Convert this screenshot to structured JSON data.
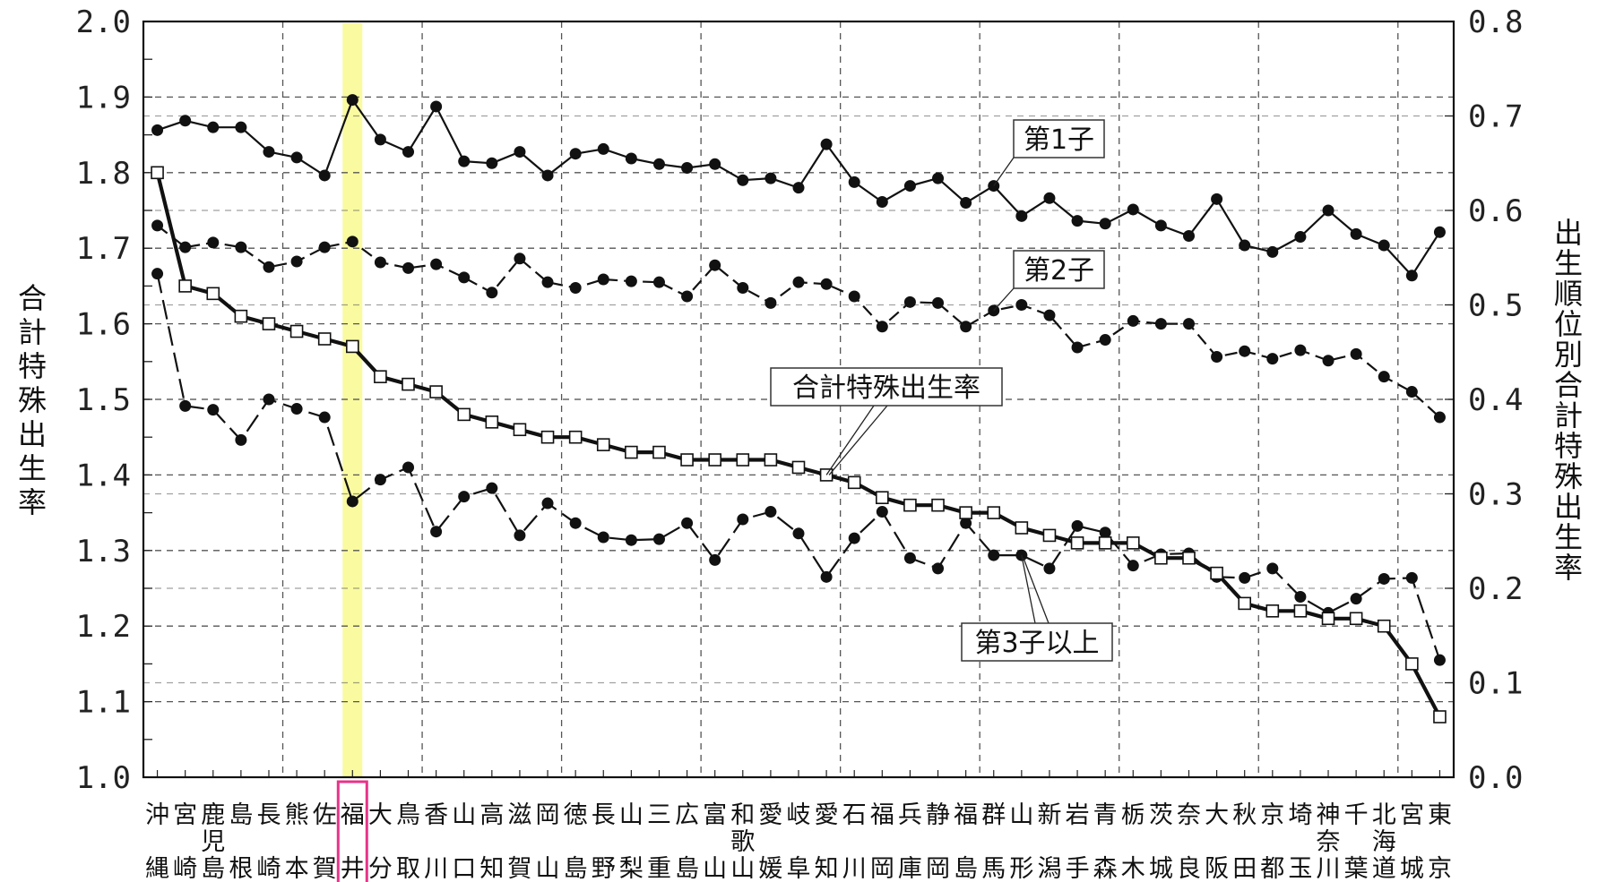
{
  "chart_data": {
    "type": "line",
    "categories": [
      "沖縄",
      "宮崎",
      "鹿児島",
      "島根",
      "長崎",
      "熊本",
      "佐賀",
      "福井",
      "大分",
      "鳥取",
      "香川",
      "山口",
      "高知",
      "滋賀",
      "岡山",
      "徳島",
      "長野",
      "山梨",
      "三重",
      "広島",
      "富山",
      "和歌山",
      "愛媛",
      "岐阜",
      "愛知",
      "石川",
      "福岡",
      "兵庫",
      "静岡",
      "福島",
      "群馬",
      "山形",
      "新潟",
      "岩手",
      "青森",
      "栃木",
      "茨城",
      "奈良",
      "大阪",
      "秋田",
      "京都",
      "埼玉",
      "神奈川",
      "千葉",
      "北海道",
      "宮城",
      "東京"
    ],
    "highlight_category": "福井",
    "y_left": {
      "label": "合計特殊出生率",
      "lim": [
        1.0,
        2.0
      ],
      "ticks": [
        "1.0",
        "1.1",
        "1.2",
        "1.3",
        "1.4",
        "1.5",
        "1.6",
        "1.7",
        "1.8",
        "1.9",
        "2.0"
      ]
    },
    "y_right": {
      "label": "出生順位別合計特殊出生率",
      "lim": [
        0.0,
        0.8
      ],
      "ticks": [
        "0.0",
        "0.1",
        "0.2",
        "0.3",
        "0.4",
        "0.5",
        "0.6",
        "0.7",
        "0.8"
      ]
    },
    "grid": true,
    "series": [
      {
        "name": "合計特殊出生率",
        "axis": "left",
        "marker": "open-square",
        "values": [
          1.8,
          1.65,
          1.64,
          1.61,
          1.6,
          1.59,
          1.58,
          1.57,
          1.53,
          1.52,
          1.51,
          1.48,
          1.47,
          1.46,
          1.45,
          1.45,
          1.44,
          1.43,
          1.43,
          1.42,
          1.42,
          1.42,
          1.42,
          1.41,
          1.4,
          1.39,
          1.37,
          1.36,
          1.36,
          1.35,
          1.35,
          1.33,
          1.32,
          1.31,
          1.31,
          1.31,
          1.29,
          1.29,
          1.27,
          1.23,
          1.22,
          1.22,
          1.21,
          1.21,
          1.2,
          1.15,
          1.08
        ]
      },
      {
        "name": "第1子",
        "axis": "right",
        "marker": "filled-circle",
        "values": [
          0.685,
          0.695,
          0.688,
          0.688,
          0.662,
          0.656,
          0.637,
          0.717,
          0.675,
          0.662,
          0.71,
          0.652,
          0.65,
          0.662,
          0.637,
          0.66,
          0.665,
          0.655,
          0.649,
          0.645,
          0.649,
          0.632,
          0.634,
          0.624,
          0.67,
          0.63,
          0.609,
          0.626,
          0.634,
          0.608,
          0.626,
          0.594,
          0.613,
          0.589,
          0.586,
          0.601,
          0.584,
          0.573,
          0.612,
          0.563,
          0.556,
          0.572,
          0.6,
          0.575,
          0.563,
          0.531,
          0.577
        ]
      },
      {
        "name": "第2子",
        "axis": "right",
        "marker": "filled-circle",
        "values": [
          0.584,
          0.561,
          0.566,
          0.561,
          0.54,
          0.546,
          0.561,
          0.567,
          0.545,
          0.539,
          0.543,
          0.529,
          0.513,
          0.549,
          0.524,
          0.518,
          0.527,
          0.525,
          0.524,
          0.509,
          0.542,
          0.518,
          0.502,
          0.524,
          0.522,
          0.509,
          0.477,
          0.503,
          0.502,
          0.477,
          0.494,
          0.5,
          0.489,
          0.455,
          0.463,
          0.483,
          0.48,
          0.48,
          0.445,
          0.451,
          0.443,
          0.452,
          0.441,
          0.448,
          0.424,
          0.408,
          0.381
        ]
      },
      {
        "name": "第3子以上",
        "axis": "right",
        "marker": "filled-circle",
        "values": [
          0.533,
          0.393,
          0.389,
          0.357,
          0.4,
          0.39,
          0.381,
          0.292,
          0.315,
          0.328,
          0.26,
          0.297,
          0.306,
          0.256,
          0.29,
          0.269,
          0.254,
          0.251,
          0.252,
          0.269,
          0.23,
          0.273,
          0.281,
          0.258,
          0.212,
          0.253,
          0.281,
          0.232,
          0.221,
          0.269,
          0.235,
          0.235,
          0.221,
          0.266,
          0.259,
          0.224,
          0.236,
          0.237,
          0.212,
          0.211,
          0.221,
          0.191,
          0.174,
          0.189,
          0.21,
          0.211,
          0.124
        ]
      }
    ]
  }
}
